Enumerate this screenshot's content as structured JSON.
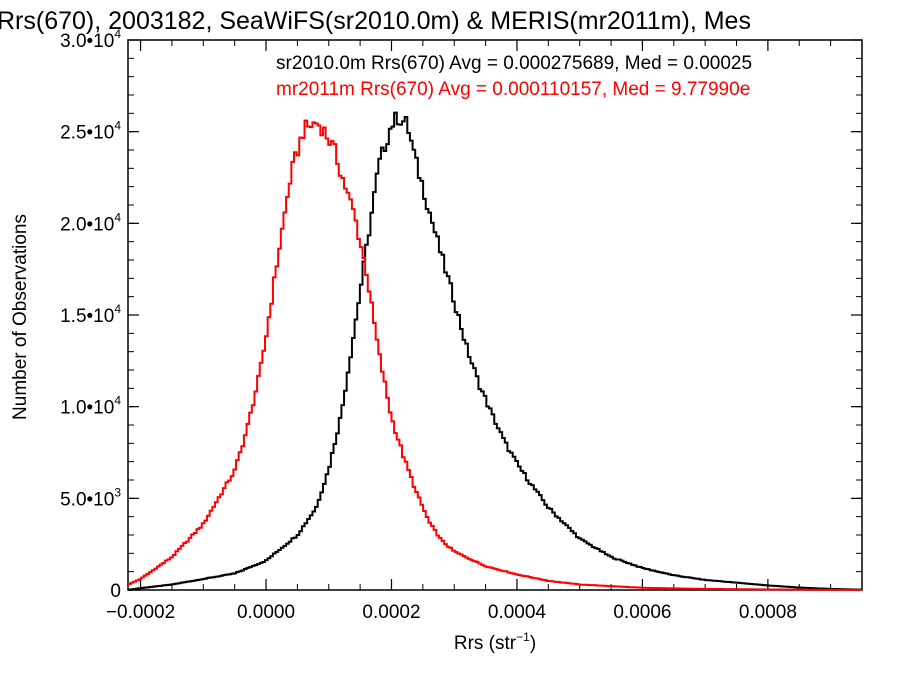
{
  "chart_data": {
    "type": "line",
    "title": "Rrs(670), 2003182, SeaWiFS(sr2010.0m) & MERIS(mr2011m), Mes",
    "xlabel": "Rrs (str",
    "xlabel_sup": "−1",
    "xlabel_close": ")",
    "ylabel": "Number of Observations",
    "xlim": [
      -0.00022,
      0.00095
    ],
    "ylim": [
      0,
      30000
    ],
    "x_ticks": [
      {
        "value": -0.0002,
        "label": "−0.0002"
      },
      {
        "value": 0.0,
        "label": "0.0000"
      },
      {
        "value": 0.0002,
        "label": "0.0002"
      },
      {
        "value": 0.0004,
        "label": "0.0004"
      },
      {
        "value": 0.0006,
        "label": "0.0006"
      },
      {
        "value": 0.0008,
        "label": "0.0008"
      }
    ],
    "y_ticks": [
      {
        "value": 0,
        "mant": "0",
        "exp": ""
      },
      {
        "value": 5000,
        "mant": "5.0•10",
        "exp": "3"
      },
      {
        "value": 10000,
        "mant": "1.0•10",
        "exp": "4"
      },
      {
        "value": 15000,
        "mant": "1.5•10",
        "exp": "4"
      },
      {
        "value": 20000,
        "mant": "2.0•10",
        "exp": "4"
      },
      {
        "value": 25000,
        "mant": "2.5•10",
        "exp": "4"
      },
      {
        "value": 30000,
        "mant": "3.0•10",
        "exp": "4"
      }
    ],
    "annotations": [
      {
        "text": "sr2010.0m Rrs(670) Avg = 0.000275689, Med = 0.00025",
        "color": "#000000"
      },
      {
        "text": "mr2011m Rrs(670) Avg = 0.000110157, Med = 9.77990e",
        "color": "#ff0000"
      }
    ],
    "series": [
      {
        "color": "#000000",
        "x": [
          -0.00022,
          -0.0002,
          -0.00015,
          -0.0001,
          -5e-05,
          0.0,
          5e-05,
          8e-05,
          0.0001,
          0.00012,
          0.00014,
          0.00016,
          0.00018,
          0.0002,
          0.00021,
          0.000225,
          0.00024,
          0.00025,
          0.00026,
          0.00028,
          0.0003,
          0.00032,
          0.00034,
          0.00036,
          0.00038,
          0.0004,
          0.00042,
          0.00045,
          0.0005,
          0.00055,
          0.0006,
          0.00065,
          0.0007,
          0.00075,
          0.0008,
          0.00085,
          0.0009,
          0.00095
        ],
        "y": [
          0,
          100,
          300,
          600,
          900,
          1600,
          3000,
          4500,
          6600,
          9600,
          14000,
          18600,
          23200,
          25400,
          25800,
          25400,
          23200,
          22000,
          20700,
          18200,
          15800,
          13200,
          11200,
          9600,
          8100,
          6900,
          5900,
          4500,
          2800,
          1800,
          1200,
          800,
          550,
          400,
          250,
          130,
          60,
          20
        ]
      },
      {
        "color": "#ff0000",
        "x": [
          -0.00022,
          -0.0002,
          -0.00015,
          -0.0001,
          -5e-05,
          -3e-05,
          -1e-05,
          0.0,
          2e-05,
          4e-05,
          6e-05,
          8e-05,
          9e-05,
          0.0001,
          0.00011,
          0.00012,
          0.00013,
          0.00014,
          0.00015,
          0.00016,
          0.00017,
          0.00018,
          0.0002,
          0.00022,
          0.00024,
          0.00026,
          0.00028,
          0.0003,
          0.00035,
          0.0004,
          0.00045,
          0.0005,
          0.0006,
          0.0007,
          0.0008,
          0.0009,
          0.00095
        ],
        "y": [
          300,
          600,
          1800,
          3600,
          6500,
          8800,
          11800,
          13800,
          18400,
          22700,
          25100,
          25500,
          25200,
          24600,
          23900,
          22700,
          21600,
          20600,
          19000,
          17400,
          15100,
          12900,
          9400,
          7200,
          5300,
          3700,
          2700,
          2100,
          1300,
          850,
          500,
          300,
          120,
          60,
          30,
          10,
          5
        ]
      }
    ]
  }
}
